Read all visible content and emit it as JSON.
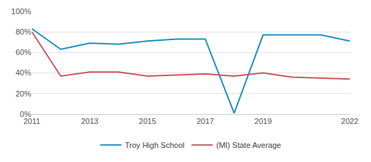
{
  "chart_data": {
    "type": "line",
    "x": [
      2011,
      2012,
      2013,
      2014,
      2015,
      2016,
      2017,
      2018,
      2019,
      2020,
      2021,
      2022
    ],
    "series": [
      {
        "name": "Troy High School",
        "color": "#1d8fc4",
        "values": [
          83,
          63,
          69,
          68,
          71,
          73,
          73,
          1,
          77,
          77,
          77,
          71
        ]
      },
      {
        "name": "(MI) State Average",
        "color": "#cc555c",
        "values": [
          80,
          37,
          41,
          41,
          37,
          38,
          39,
          37,
          40,
          36,
          35,
          34
        ]
      }
    ],
    "xlim": [
      2011,
      2022
    ],
    "xticks": [
      2011,
      2013,
      2015,
      2017,
      2019,
      2022
    ],
    "ylim": [
      0,
      100
    ],
    "yticks": [
      {
        "value": 0,
        "label": "0%"
      },
      {
        "value": 20,
        "label": "20%"
      },
      {
        "value": 40,
        "label": "40%"
      },
      {
        "value": 60,
        "label": "60%"
      },
      {
        "value": 80,
        "label": "80%"
      },
      {
        "value": 100,
        "label": "100%"
      }
    ],
    "grid": true,
    "legend": "bottom"
  }
}
